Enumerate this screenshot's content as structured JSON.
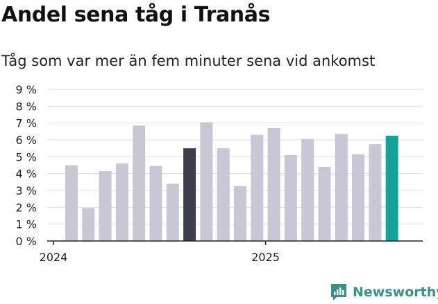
{
  "header": {
    "title": "Andel sena tåg i Tranås",
    "subtitle": "Tåg som var mer än fem minuter sena vid ankomst"
  },
  "brand": {
    "name": "Newsworthy",
    "logo_icon": "newsworthy-chart-bubble-icon",
    "color": "#3d8f8a"
  },
  "colors": {
    "default_bar": "#c8c7d3",
    "highlight_dark": "#3e3e4e",
    "highlight_teal": "#13a39a"
  },
  "chart_data": {
    "type": "bar",
    "title": "Andel sena tåg i Tranås",
    "subtitle": "Tåg som var mer än fem minuter sena vid ankomst",
    "xlabel": "",
    "ylabel": "",
    "unit": "%",
    "ylim": [
      0,
      9
    ],
    "y_ticks": [
      "0 %",
      "1 %",
      "2 %",
      "3 %",
      "4 %",
      "5 %",
      "6 %",
      "7 %",
      "8 %",
      "9 %"
    ],
    "x_ticks": [
      {
        "label": "2024",
        "index": 0
      },
      {
        "label": "2025",
        "index": 12
      }
    ],
    "grid": true,
    "values": [
      4.5,
      1.95,
      4.15,
      4.6,
      6.85,
      4.45,
      3.4,
      5.5,
      7.05,
      5.5,
      3.25,
      6.3,
      6.7,
      5.1,
      6.05,
      4.4,
      6.35,
      5.15,
      5.75,
      6.25
    ],
    "highlight": [
      {
        "index": 7,
        "color": "#3e3e4e"
      },
      {
        "index": 19,
        "color": "#13a39a"
      }
    ]
  }
}
